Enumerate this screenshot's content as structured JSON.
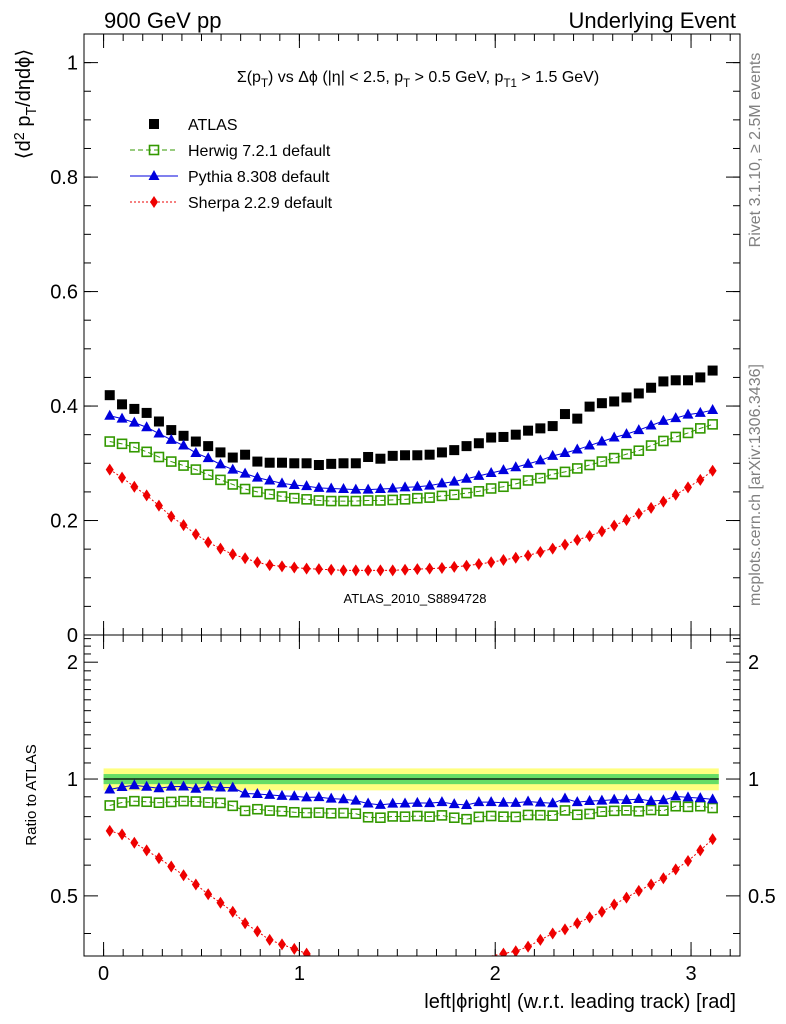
{
  "header": {
    "left": "900 GeV pp",
    "right": "Underlying Event"
  },
  "side_labels": {
    "rivet": "Rivet 3.1.10, ≥ 2.5M events",
    "mcplots": "mcplots.cern.ch [arXiv:1306.3436]"
  },
  "chart_data": [
    {
      "type": "scatter",
      "panel": "main",
      "title": "Σ(p_T) vs Δϕ (|η| < 2.5, p_T > 0.5 GeV, p_T1 > 1.5 GeV)",
      "ylabel": "⟨d² p_T/dηdϕ⟩",
      "watermark": "ATLAS_2010_S8894728",
      "xlim": [
        -0.1,
        3.25
      ],
      "ylim": [
        0,
        1.05
      ],
      "yticks": [
        0,
        0.2,
        0.4,
        0.6,
        0.8,
        1
      ],
      "ytick_labels": [
        "0",
        "0.2",
        "0.4",
        "0.6",
        "0.8",
        "1"
      ],
      "legend_position": "top-left",
      "x": [
        0.0314,
        0.0942,
        0.1571,
        0.2199,
        0.2827,
        0.3456,
        0.4084,
        0.4712,
        0.5341,
        0.5969,
        0.6597,
        0.7226,
        0.7854,
        0.8482,
        0.9111,
        0.9739,
        1.0367,
        1.0996,
        1.1624,
        1.2252,
        1.2881,
        1.3509,
        1.4137,
        1.4765,
        1.5394,
        1.6022,
        1.665,
        1.7279,
        1.7907,
        1.8535,
        1.9164,
        1.9792,
        2.042,
        2.1049,
        2.1677,
        2.2305,
        2.2934,
        2.3562,
        2.419,
        2.4819,
        2.5447,
        2.6075,
        2.6704,
        2.7332,
        2.796,
        2.8588,
        2.9217,
        2.9845,
        3.0473,
        3.1102
      ],
      "series": [
        {
          "name": "ATLAS",
          "color": "#000000",
          "marker": "square",
          "values": [
            0.419,
            0.403,
            0.395,
            0.388,
            0.373,
            0.358,
            0.348,
            0.338,
            0.33,
            0.319,
            0.31,
            0.315,
            0.303,
            0.301,
            0.301,
            0.3,
            0.3,
            0.297,
            0.299,
            0.3,
            0.3,
            0.311,
            0.308,
            0.313,
            0.314,
            0.314,
            0.315,
            0.319,
            0.323,
            0.33,
            0.335,
            0.345,
            0.346,
            0.35,
            0.357,
            0.361,
            0.365,
            0.386,
            0.378,
            0.399,
            0.405,
            0.408,
            0.415,
            0.422,
            0.432,
            0.443,
            0.445,
            0.445,
            0.45,
            0.462
          ]
        },
        {
          "name": "Herwig 7.2.1 default",
          "color": "#339900",
          "marker": "open-square",
          "values": [
            0.338,
            0.334,
            0.328,
            0.32,
            0.311,
            0.303,
            0.296,
            0.289,
            0.28,
            0.271,
            0.263,
            0.255,
            0.25,
            0.246,
            0.242,
            0.239,
            0.237,
            0.235,
            0.234,
            0.234,
            0.234,
            0.235,
            0.235,
            0.236,
            0.237,
            0.239,
            0.24,
            0.243,
            0.245,
            0.248,
            0.251,
            0.256,
            0.259,
            0.264,
            0.27,
            0.274,
            0.281,
            0.285,
            0.291,
            0.297,
            0.303,
            0.309,
            0.316,
            0.322,
            0.331,
            0.339,
            0.346,
            0.353,
            0.361,
            0.368
          ]
        },
        {
          "name": "Pythia 8.308 default",
          "color": "#0000dd",
          "marker": "triangle",
          "values": [
            0.383,
            0.378,
            0.371,
            0.363,
            0.352,
            0.341,
            0.331,
            0.318,
            0.309,
            0.298,
            0.289,
            0.282,
            0.275,
            0.27,
            0.265,
            0.262,
            0.26,
            0.257,
            0.256,
            0.255,
            0.254,
            0.254,
            0.255,
            0.256,
            0.258,
            0.259,
            0.261,
            0.265,
            0.268,
            0.273,
            0.278,
            0.283,
            0.288,
            0.293,
            0.299,
            0.305,
            0.313,
            0.318,
            0.324,
            0.331,
            0.338,
            0.345,
            0.351,
            0.358,
            0.366,
            0.374,
            0.379,
            0.385,
            0.388,
            0.393
          ]
        },
        {
          "name": "Sherpa 2.2.9 default",
          "color": "#ee0000",
          "marker": "diamond",
          "values": [
            0.289,
            0.275,
            0.259,
            0.244,
            0.226,
            0.207,
            0.192,
            0.176,
            0.162,
            0.151,
            0.141,
            0.134,
            0.127,
            0.122,
            0.12,
            0.118,
            0.116,
            0.115,
            0.114,
            0.113,
            0.113,
            0.113,
            0.113,
            0.113,
            0.114,
            0.115,
            0.116,
            0.117,
            0.119,
            0.121,
            0.124,
            0.127,
            0.131,
            0.135,
            0.139,
            0.145,
            0.151,
            0.158,
            0.166,
            0.173,
            0.181,
            0.191,
            0.201,
            0.212,
            0.222,
            0.233,
            0.245,
            0.258,
            0.271,
            0.287
          ]
        }
      ]
    },
    {
      "type": "scatter",
      "panel": "ratio",
      "xlabel": "left|ϕright| (w.r.t. leading track) [rad]",
      "ylabel": "Ratio to ATLAS",
      "xlim": [
        -0.1,
        3.25
      ],
      "ylim": [
        0.35,
        2.35
      ],
      "xticks": [
        0,
        1,
        2,
        3
      ],
      "xtick_labels": [
        "0",
        "1",
        "2",
        "3"
      ],
      "yticks": [
        0.5,
        1,
        2
      ],
      "ytick_labels": [
        "0.5",
        "1",
        "2"
      ],
      "uncertainty_band": {
        "stat_color": "#66dd66",
        "total_color": "#ffff80",
        "stat": 0.03,
        "total": 0.065
      },
      "series": [
        {
          "name": "Herwig 7.2.1 default",
          "color": "#339900",
          "marker": "open-square",
          "values": [
            0.855,
            0.87,
            0.877,
            0.874,
            0.869,
            0.873,
            0.877,
            0.875,
            0.87,
            0.868,
            0.853,
            0.828,
            0.836,
            0.829,
            0.826,
            0.821,
            0.818,
            0.819,
            0.816,
            0.817,
            0.814,
            0.797,
            0.795,
            0.801,
            0.8,
            0.803,
            0.8,
            0.806,
            0.795,
            0.788,
            0.799,
            0.803,
            0.8,
            0.799,
            0.808,
            0.807,
            0.805,
            0.83,
            0.809,
            0.813,
            0.824,
            0.828,
            0.83,
            0.826,
            0.832,
            0.829,
            0.851,
            0.848,
            0.851,
            0.842
          ]
        },
        {
          "name": "Pythia 8.308 default",
          "color": "#0000dd",
          "marker": "triangle",
          "values": [
            0.94,
            0.954,
            0.964,
            0.955,
            0.947,
            0.956,
            0.957,
            0.944,
            0.957,
            0.951,
            0.95,
            0.918,
            0.915,
            0.91,
            0.905,
            0.903,
            0.897,
            0.898,
            0.89,
            0.887,
            0.88,
            0.865,
            0.858,
            0.864,
            0.865,
            0.868,
            0.867,
            0.872,
            0.862,
            0.857,
            0.872,
            0.872,
            0.869,
            0.868,
            0.875,
            0.87,
            0.866,
            0.891,
            0.872,
            0.878,
            0.88,
            0.885,
            0.883,
            0.888,
            0.878,
            0.882,
            0.902,
            0.897,
            0.893,
            0.886
          ]
        },
        {
          "name": "Sherpa 2.2.9 default",
          "color": "#ee0000",
          "marker": "diamond",
          "values": [
            0.735,
            0.72,
            0.685,
            0.655,
            0.625,
            0.595,
            0.565,
            0.535,
            0.505,
            0.48,
            0.455,
            0.425,
            0.405,
            0.385,
            0.375,
            0.365,
            0.355,
            0.345,
            0.335,
            0.325,
            0.32,
            0.315,
            0.315,
            0.315,
            0.32,
            0.32,
            0.325,
            0.33,
            0.335,
            0.34,
            0.345,
            0.35,
            0.355,
            0.36,
            0.37,
            0.385,
            0.4,
            0.41,
            0.425,
            0.44,
            0.455,
            0.475,
            0.495,
            0.515,
            0.535,
            0.555,
            0.585,
            0.615,
            0.655,
            0.7
          ]
        }
      ]
    }
  ]
}
